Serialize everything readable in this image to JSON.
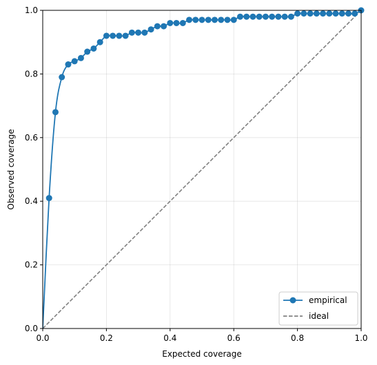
{
  "chart_data": {
    "type": "line",
    "xlabel": "Expected coverage",
    "ylabel": "Observed coverage",
    "xlim": [
      0,
      1
    ],
    "ylim": [
      0,
      1
    ],
    "xticks": [
      "0.0",
      "0.2",
      "0.4",
      "0.6",
      "0.8",
      "1.0"
    ],
    "yticks": [
      "0.0",
      "0.2",
      "0.4",
      "0.6",
      "0.8",
      "1.0"
    ],
    "grid": true,
    "legend_position": "bottom-right",
    "series": [
      {
        "name": "empirical",
        "color": "#1f77b4",
        "style": "solid-with-circle-markers",
        "x": [
          0.0,
          0.02,
          0.04,
          0.06,
          0.08,
          0.1,
          0.12,
          0.14,
          0.16,
          0.18,
          0.2,
          0.22,
          0.24,
          0.26,
          0.28,
          0.3,
          0.32,
          0.34,
          0.36,
          0.38,
          0.4,
          0.42,
          0.44,
          0.46,
          0.48,
          0.5,
          0.52,
          0.54,
          0.56,
          0.58,
          0.6,
          0.62,
          0.64,
          0.66,
          0.68,
          0.7,
          0.72,
          0.74,
          0.76,
          0.78,
          0.8,
          0.82,
          0.84,
          0.86,
          0.88,
          0.9,
          0.92,
          0.94,
          0.96,
          0.98,
          1.0
        ],
        "y": [
          0.0,
          0.41,
          0.68,
          0.79,
          0.83,
          0.84,
          0.85,
          0.87,
          0.88,
          0.9,
          0.92,
          0.92,
          0.92,
          0.92,
          0.93,
          0.93,
          0.93,
          0.94,
          0.95,
          0.95,
          0.96,
          0.96,
          0.96,
          0.97,
          0.97,
          0.97,
          0.97,
          0.97,
          0.97,
          0.97,
          0.97,
          0.98,
          0.98,
          0.98,
          0.98,
          0.98,
          0.98,
          0.98,
          0.98,
          0.98,
          0.99,
          0.99,
          0.99,
          0.99,
          0.99,
          0.99,
          0.99,
          0.99,
          0.99,
          0.99,
          1.0
        ],
        "markers_from_index": 1
      },
      {
        "name": "ideal",
        "color": "#808080",
        "style": "dashed",
        "x": [
          0,
          1
        ],
        "y": [
          0,
          1
        ]
      }
    ]
  }
}
